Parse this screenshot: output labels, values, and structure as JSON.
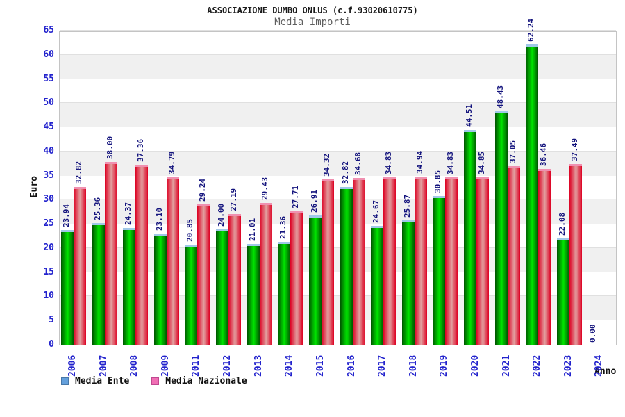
{
  "header": {
    "title": "ASSOCIAZIONE DUMBO ONLUS (c.f.93020610775)",
    "subtitle": "Media Importi"
  },
  "chart_data": {
    "type": "bar",
    "title": "ASSOCIAZIONE DUMBO ONLUS (c.f.93020610775)",
    "subtitle": "Media Importi",
    "xlabel": "Anno",
    "ylabel": "Euro",
    "ylim": [
      0,
      65
    ],
    "ytick_step": 5,
    "grid": "alternating-horizontal-bands",
    "legend_position": "bottom-left",
    "categories": [
      "2006",
      "2007",
      "2008",
      "2009",
      "2011",
      "2012",
      "2013",
      "2014",
      "2015",
      "2016",
      "2017",
      "2018",
      "2019",
      "2020",
      "2021",
      "2022",
      "2023",
      "2024"
    ],
    "series": [
      {
        "name": "Media Ente",
        "legend_swatch": "#64a0dc",
        "legend_swatch_border": "#4878a8",
        "bar_gradient": [
          "#005500",
          "#00e400",
          "#005500"
        ],
        "cap_color": "#a0c8e8",
        "values": [
          23.94,
          25.36,
          24.37,
          23.1,
          20.85,
          24.0,
          21.01,
          21.36,
          26.91,
          32.82,
          24.67,
          25.87,
          30.85,
          44.51,
          48.43,
          62.24,
          22.08,
          0.0
        ]
      },
      {
        "name": "Media Nazionale",
        "legend_swatch": "#f06eb4",
        "legend_swatch_border": "#c04890",
        "bar_gradient": [
          "#dd0022",
          "#e2a0a0",
          "#dd0022"
        ],
        "cap_color": "#f090b0",
        "values": [
          32.82,
          38.0,
          37.36,
          34.79,
          29.24,
          27.19,
          29.43,
          27.71,
          34.32,
          34.68,
          34.83,
          34.94,
          34.83,
          34.85,
          37.05,
          36.46,
          37.49,
          null
        ]
      }
    ],
    "colors": {
      "axis_tick_text": "#2323cd",
      "value_label_text": "#15157e",
      "band_gray": "#f0f0f0",
      "plot_border": "#c4c4c4",
      "title_text": "#1a1a1a",
      "subtitle_text": "#5f5f5f"
    }
  }
}
